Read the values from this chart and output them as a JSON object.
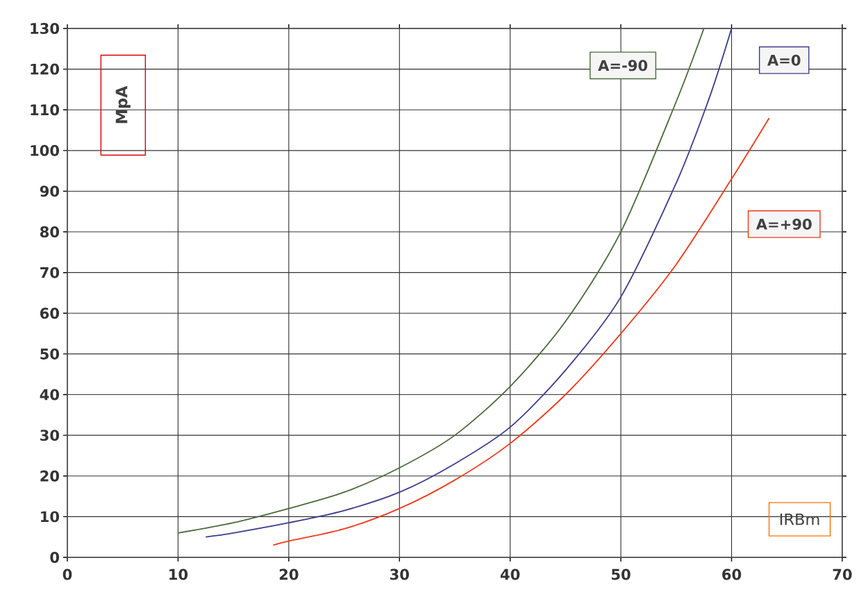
{
  "chart_data": {
    "type": "line",
    "xlabel": "IRBm",
    "ylabel": "MpA",
    "xlim": [
      0,
      70
    ],
    "xticks": [
      0,
      10,
      20,
      30,
      40,
      50,
      60,
      70
    ],
    "ylim": [
      0,
      130
    ],
    "yticks": [
      0,
      10,
      20,
      30,
      40,
      50,
      60,
      70,
      80,
      90,
      100,
      110,
      120,
      130
    ],
    "grid": true,
    "legend": false,
    "marker": "none",
    "line_style": "solid",
    "series": [
      {
        "name": "A=-90",
        "color": "#4a6b3a",
        "x": [
          10,
          15,
          20,
          25,
          30,
          35,
          40,
          45,
          50,
          55,
          57.5
        ],
        "values": [
          6,
          8.5,
          12,
          16,
          22,
          30,
          42,
          58,
          80,
          112,
          130
        ]
      },
      {
        "name": "A=0",
        "color": "#3c3c8c",
        "x": [
          12.5,
          15,
          20,
          25,
          30,
          35,
          40,
          45,
          50,
          55,
          58,
          60
        ],
        "values": [
          5,
          6,
          8.5,
          11.5,
          16,
          23,
          32,
          46,
          64,
          92,
          113,
          130
        ]
      },
      {
        "name": "A=+90",
        "color": "#ee3a1a",
        "x": [
          18.6,
          20,
          25,
          30,
          35,
          40,
          45,
          50,
          55,
          60,
          63.4
        ],
        "values": [
          3,
          4,
          7,
          12,
          19,
          28,
          40,
          55,
          72,
          93,
          108
        ]
      }
    ]
  }
}
